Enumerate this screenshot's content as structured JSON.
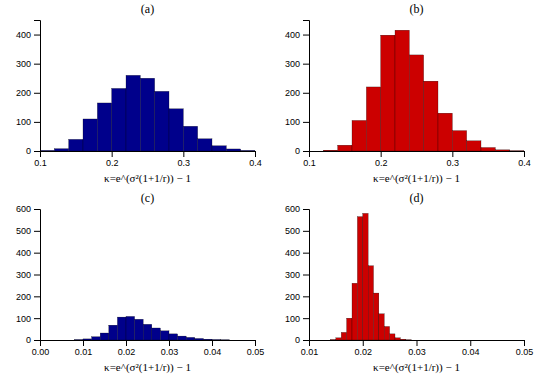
{
  "chart_data": [
    {
      "type": "histogram",
      "title": "(a)",
      "x_label": "κ=e^(σ²(1+1/r)) − 1",
      "color": "#00008B",
      "bins": [
        0.1,
        0.12,
        0.14,
        0.16,
        0.18,
        0.2,
        0.22,
        0.24,
        0.26,
        0.28,
        0.3,
        0.32,
        0.34,
        0.36,
        0.38,
        0.4
      ],
      "values": [
        2,
        8,
        40,
        110,
        165,
        215,
        260,
        250,
        205,
        145,
        85,
        42,
        18,
        7,
        2
      ],
      "xlim": [
        0.1,
        0.4
      ],
      "xticks": [
        0.1,
        0.2,
        0.3,
        0.4
      ],
      "ylim": [
        0,
        450
      ],
      "yticks": [
        0,
        100,
        200,
        300,
        400
      ]
    },
    {
      "type": "histogram",
      "title": "(b)",
      "x_label": "κ=e^(σ²(1+1/r)) − 1",
      "color": "#CC0000",
      "bins": [
        0.1,
        0.12,
        0.14,
        0.16,
        0.18,
        0.2,
        0.22,
        0.24,
        0.26,
        0.28,
        0.3,
        0.32,
        0.34,
        0.36,
        0.38,
        0.4
      ],
      "values": [
        0,
        3,
        20,
        105,
        220,
        398,
        415,
        330,
        240,
        130,
        70,
        35,
        12,
        4,
        1
      ],
      "xlim": [
        0.1,
        0.4
      ],
      "xticks": [
        0.1,
        0.2,
        0.3,
        0.4
      ],
      "ylim": [
        0,
        450
      ],
      "yticks": [
        0,
        100,
        200,
        300,
        400
      ]
    },
    {
      "type": "histogram",
      "title": "(c)",
      "x_label": "κ=e^(σ²(1+1/r)) − 1",
      "color": "#00008B",
      "bins": [
        0.006,
        0.008,
        0.01,
        0.012,
        0.014,
        0.016,
        0.018,
        0.02,
        0.022,
        0.024,
        0.026,
        0.028,
        0.03,
        0.032,
        0.034,
        0.036,
        0.038,
        0.04,
        0.042,
        0.044,
        0.046,
        0.048,
        0.05
      ],
      "values": [
        0,
        2,
        5,
        15,
        32,
        68,
        105,
        108,
        95,
        72,
        55,
        42,
        28,
        18,
        12,
        7,
        4,
        2,
        1,
        0,
        0,
        0
      ],
      "xlim": [
        0,
        0.05
      ],
      "xticks": [
        {
          "value": 0,
          "label": "0.00"
        },
        0.01,
        0.02,
        0.03,
        0.04,
        0.05
      ],
      "ylim": [
        0,
        600
      ],
      "yticks": [
        0,
        100,
        200,
        300,
        400,
        500,
        600
      ]
    },
    {
      "type": "histogram",
      "title": "(d)",
      "x_label": "κ=e^(σ²(1+1/r)) − 1",
      "color": "#CC0000",
      "bins": [
        0.014,
        0.015,
        0.016,
        0.017,
        0.018,
        0.019,
        0.02,
        0.021,
        0.022,
        0.023,
        0.024,
        0.025,
        0.026,
        0.027,
        0.028,
        0.029,
        0.03
      ],
      "values": [
        2,
        10,
        35,
        100,
        260,
        565,
        580,
        340,
        215,
        120,
        62,
        28,
        10,
        4,
        1,
        0
      ],
      "xlim": [
        0.01,
        0.05
      ],
      "xticks": [
        0.01,
        0.02,
        0.03,
        0.04,
        0.05
      ],
      "ylim": [
        0,
        600
      ],
      "yticks": [
        0,
        100,
        200,
        300,
        400,
        500,
        600
      ]
    }
  ]
}
